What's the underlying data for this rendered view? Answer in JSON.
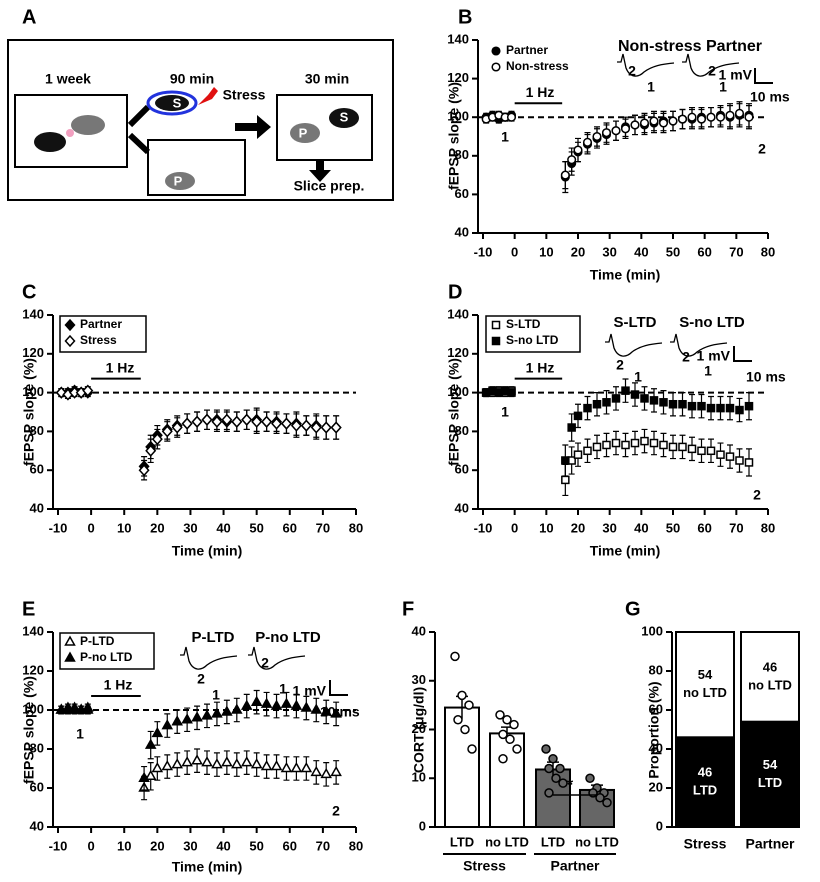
{
  "diagram": {
    "panel": "A",
    "labels": {
      "week": "1 week",
      "t90": "90 min",
      "t30": "30 min",
      "stress": "Stress",
      "slice": "Slice prep.",
      "s1": "S",
      "s2": "S",
      "p1": "P",
      "p2": "P"
    }
  },
  "chart_data": [
    {
      "type": "scatter",
      "panel": "B",
      "xlabel": "Time (min)",
      "ylabel": "fEPSP slope (%)",
      "x": [
        -9,
        -7,
        -5,
        -3,
        -1,
        16,
        18,
        20,
        23,
        26,
        29,
        32,
        35,
        38,
        41,
        44,
        47,
        50,
        53,
        56,
        59,
        62,
        65,
        68,
        71,
        74
      ],
      "xlim": [
        -10,
        80
      ],
      "xticks": [
        -10,
        0,
        10,
        20,
        30,
        40,
        50,
        60,
        70,
        80
      ],
      "ylim": [
        40,
        140
      ],
      "yticks": [
        40,
        60,
        80,
        100,
        120,
        140
      ],
      "hline": 100,
      "stim": [
        0,
        15
      ],
      "legend": "upper left",
      "legend_box": false,
      "series": [
        {
          "name": "Partner",
          "marker": "circle",
          "filled": true,
          "color": "#000",
          "values": [
            100,
            101,
            99,
            100,
            101,
            69,
            76,
            82,
            86,
            89,
            91,
            93,
            95,
            96,
            96,
            97,
            98,
            98,
            99,
            99,
            100,
            100,
            101,
            100,
            101,
            101
          ],
          "errors": [
            2,
            2,
            2,
            2,
            2,
            8,
            6,
            5,
            5,
            5,
            5,
            5,
            5,
            5,
            5,
            5,
            5,
            5,
            5,
            5,
            5,
            5,
            5,
            6,
            6,
            6
          ]
        },
        {
          "name": "Non-stress",
          "marker": "circle",
          "filled": false,
          "color": "#000",
          "values": [
            99,
            100,
            101,
            100,
            100,
            70,
            78,
            83,
            87,
            90,
            92,
            93,
            94,
            96,
            97,
            98,
            97,
            98,
            99,
            100,
            99,
            100,
            100,
            101,
            102,
            100
          ],
          "errors": [
            2,
            2,
            2,
            2,
            2,
            7,
            6,
            6,
            5,
            5,
            5,
            5,
            5,
            5,
            5,
            5,
            5,
            5,
            5,
            5,
            5,
            5,
            5,
            6,
            6,
            6
          ]
        }
      ],
      "annotations": [
        "Non-stress Partner",
        "2",
        "1",
        "2",
        "1",
        "1 mV",
        "10 ms",
        "1 Hz",
        "1",
        "2"
      ]
    },
    {
      "type": "scatter",
      "panel": "C",
      "xlabel": "Time (min)",
      "ylabel": "fEPSP slope (%)",
      "x": [
        -9,
        -7,
        -5,
        -3,
        -1,
        16,
        18,
        20,
        23,
        26,
        29,
        32,
        35,
        38,
        41,
        44,
        47,
        50,
        53,
        56,
        59,
        62,
        65,
        68,
        71,
        74
      ],
      "xlim": [
        -10,
        80
      ],
      "xticks": [
        -10,
        0,
        10,
        20,
        30,
        40,
        50,
        60,
        70,
        80
      ],
      "ylim": [
        40,
        140
      ],
      "yticks": [
        40,
        60,
        80,
        100,
        120,
        140
      ],
      "hline": 100,
      "stim": [
        0,
        15
      ],
      "legend": "upper left",
      "legend_box": true,
      "series": [
        {
          "name": "Partner",
          "marker": "diamond",
          "filled": true,
          "color": "#000",
          "values": [
            100,
            100,
            101,
            100,
            100,
            62,
            72,
            78,
            81,
            83,
            84,
            85,
            86,
            86,
            85,
            85,
            86,
            86,
            85,
            85,
            84,
            84,
            83,
            83,
            82,
            82
          ],
          "errors": [
            2,
            2,
            2,
            2,
            2,
            5,
            6,
            5,
            5,
            5,
            5,
            5,
            5,
            5,
            5,
            5,
            5,
            6,
            5,
            5,
            5,
            6,
            5,
            6,
            6,
            6
          ]
        },
        {
          "name": "Stress",
          "marker": "diamond",
          "filled": false,
          "color": "#000",
          "values": [
            100,
            99,
            100,
            100,
            101,
            60,
            70,
            76,
            80,
            82,
            84,
            85,
            86,
            85,
            86,
            85,
            86,
            85,
            85,
            84,
            84,
            83,
            83,
            82,
            82,
            82
          ],
          "errors": [
            2,
            2,
            2,
            2,
            2,
            5,
            6,
            5,
            5,
            5,
            5,
            5,
            5,
            5,
            5,
            5,
            5,
            6,
            5,
            5,
            5,
            6,
            5,
            6,
            6,
            6
          ]
        }
      ],
      "annotations": [
        "1 Hz"
      ]
    },
    {
      "type": "scatter",
      "panel": "D",
      "xlabel": "Time (min)",
      "ylabel": "fEPSP slope (%)",
      "x": [
        -9,
        -7,
        -5,
        -3,
        -1,
        16,
        18,
        20,
        23,
        26,
        29,
        32,
        35,
        38,
        41,
        44,
        47,
        50,
        53,
        56,
        59,
        62,
        65,
        68,
        71,
        74
      ],
      "xlim": [
        -10,
        80
      ],
      "xticks": [
        -10,
        0,
        10,
        20,
        30,
        40,
        50,
        60,
        70,
        80
      ],
      "ylim": [
        40,
        140
      ],
      "yticks": [
        40,
        60,
        80,
        100,
        120,
        140
      ],
      "hline": 100,
      "stim": [
        0,
        15
      ],
      "legend": "upper left",
      "legend_box": true,
      "series": [
        {
          "name": "S-LTD",
          "marker": "square",
          "filled": false,
          "color": "#000",
          "values": [
            100,
            100,
            101,
            100,
            101,
            55,
            65,
            68,
            70,
            72,
            73,
            74,
            73,
            74,
            75,
            74,
            73,
            72,
            72,
            71,
            70,
            70,
            68,
            67,
            65,
            64
          ],
          "errors": [
            2,
            2,
            2,
            2,
            2,
            8,
            7,
            6,
            6,
            6,
            6,
            6,
            6,
            6,
            6,
            6,
            6,
            6,
            6,
            6,
            6,
            6,
            6,
            6,
            6,
            7
          ]
        },
        {
          "name": "S-no LTD",
          "marker": "square",
          "filled": true,
          "color": "#000",
          "values": [
            100,
            101,
            100,
            101,
            100,
            65,
            82,
            88,
            92,
            94,
            95,
            97,
            101,
            99,
            97,
            96,
            95,
            94,
            94,
            93,
            93,
            92,
            92,
            92,
            91,
            93
          ],
          "errors": [
            2,
            2,
            2,
            2,
            2,
            8,
            7,
            6,
            6,
            6,
            6,
            6,
            6,
            6,
            6,
            6,
            6,
            6,
            6,
            6,
            6,
            6,
            6,
            6,
            6,
            7
          ]
        }
      ],
      "annotations": [
        "S-LTD",
        "S-no LTD",
        "2",
        "1",
        "2",
        "1",
        "1 mV",
        "10 ms",
        "1 Hz",
        "1",
        "2"
      ]
    },
    {
      "type": "scatter",
      "panel": "E",
      "xlabel": "Time (min)",
      "ylabel": "fEPSP slope (%)",
      "x": [
        -9,
        -7,
        -5,
        -3,
        -1,
        16,
        18,
        20,
        23,
        26,
        29,
        32,
        35,
        38,
        41,
        44,
        47,
        50,
        53,
        56,
        59,
        62,
        65,
        68,
        71,
        74
      ],
      "xlim": [
        -10,
        80
      ],
      "xticks": [
        -10,
        0,
        10,
        20,
        30,
        40,
        50,
        60,
        70,
        80
      ],
      "ylim": [
        40,
        140
      ],
      "yticks": [
        40,
        60,
        80,
        100,
        120,
        140
      ],
      "hline": 100,
      "stim": [
        0,
        15
      ],
      "legend": "upper left",
      "legend_box": true,
      "series": [
        {
          "name": "P-LTD",
          "marker": "triangle",
          "filled": false,
          "color": "#000",
          "values": [
            100,
            100,
            101,
            100,
            100,
            60,
            66,
            70,
            71,
            72,
            73,
            74,
            73,
            72,
            73,
            72,
            73,
            72,
            71,
            71,
            70,
            70,
            70,
            68,
            67,
            68
          ],
          "errors": [
            2,
            2,
            2,
            2,
            2,
            6,
            7,
            6,
            6,
            6,
            6,
            6,
            6,
            6,
            6,
            6,
            6,
            6,
            6,
            6,
            6,
            6,
            6,
            6,
            6,
            6
          ]
        },
        {
          "name": "P-no LTD",
          "marker": "triangle",
          "filled": true,
          "color": "#000",
          "values": [
            100,
            101,
            100,
            100,
            101,
            65,
            82,
            88,
            92,
            94,
            95,
            96,
            97,
            98,
            99,
            100,
            102,
            104,
            103,
            102,
            103,
            102,
            101,
            100,
            99,
            98
          ],
          "errors": [
            2,
            2,
            2,
            2,
            2,
            6,
            7,
            6,
            6,
            6,
            6,
            6,
            6,
            6,
            6,
            6,
            6,
            6,
            6,
            6,
            6,
            6,
            6,
            6,
            6,
            6
          ]
        }
      ],
      "annotations": [
        "P-LTD",
        "P-no LTD",
        "2",
        "1",
        "2",
        "1",
        "1 mV",
        "10 ms",
        "1 Hz",
        "1",
        "2"
      ]
    },
    {
      "type": "bar",
      "panel": "F",
      "ylabel": "CORT (μg/dl)",
      "categories": [
        "LTD",
        "no LTD",
        "LTD",
        "no LTD"
      ],
      "groups": [
        "Stress",
        "Partner"
      ],
      "values": [
        24.5,
        19.2,
        11.8,
        7.6
      ],
      "errors": [
        2.3,
        1.3,
        1.5,
        1.0
      ],
      "colors": [
        "#ffffff",
        "#ffffff",
        "#666666",
        "#666666"
      ],
      "points": [
        [
          35,
          27,
          25,
          22,
          20,
          16
        ],
        [
          23,
          22,
          21,
          19,
          18,
          16,
          14
        ],
        [
          16,
          14,
          12,
          12,
          10,
          9,
          7
        ],
        [
          10,
          8,
          7,
          7,
          6,
          5
        ]
      ],
      "ylim": [
        0,
        40
      ],
      "yticks": [
        0,
        10,
        20,
        30,
        40
      ],
      "annotations": [
        "*"
      ]
    },
    {
      "type": "stacked_bar",
      "panel": "G",
      "ylabel": "Proportion (%)",
      "categories": [
        "Stress",
        "Partner"
      ],
      "series": [
        {
          "name": "LTD",
          "color": "#000000",
          "values": [
            46,
            54
          ]
        },
        {
          "name": "no LTD",
          "color": "#ffffff",
          "values": [
            54,
            46
          ]
        }
      ],
      "ylim": [
        0,
        100
      ],
      "yticks": [
        0,
        20,
        40,
        60,
        80,
        100
      ]
    }
  ]
}
